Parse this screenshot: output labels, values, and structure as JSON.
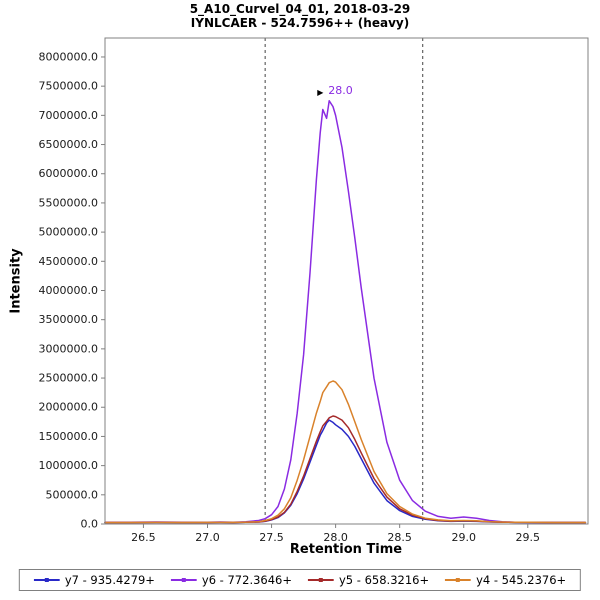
{
  "title": {
    "line1": "5_A10_Curvel_04_01, 2018-03-29",
    "line2": "IYNLCAER - 524.7596++ (heavy)"
  },
  "axes": {
    "x_label": "Retention Time",
    "y_label": "Intensity"
  },
  "chart_data": {
    "type": "line",
    "title": "5_A10_Curvel_04_01, 2018-03-29 / IYNLCAER - 524.7596++ (heavy)",
    "xlabel": "Retention Time",
    "ylabel": "Intensity",
    "xlim": [
      26.2,
      29.97
    ],
    "ylim": [
      0,
      8325000
    ],
    "x_ticks": [
      26.5,
      27.0,
      27.5,
      28.0,
      28.5,
      29.0,
      29.5
    ],
    "y_ticks": [
      0,
      500000,
      1000000,
      1500000,
      2000000,
      2500000,
      3000000,
      3500000,
      4000000,
      4500000,
      5000000,
      5500000,
      6000000,
      6500000,
      7000000,
      7500000,
      8000000
    ],
    "grid": false,
    "legend_position": "bottom",
    "boundaries": [
      27.45,
      28.68
    ],
    "annotation": {
      "text": "28.0",
      "x": 27.95,
      "y": 7250000,
      "color": "#8a2be2"
    },
    "frame_color": "#808080",
    "x": [
      26.2,
      26.4,
      26.6,
      26.8,
      27.0,
      27.1,
      27.2,
      27.3,
      27.4,
      27.45,
      27.5,
      27.55,
      27.6,
      27.65,
      27.7,
      27.75,
      27.8,
      27.85,
      27.88,
      27.9,
      27.93,
      27.95,
      27.98,
      28.0,
      28.05,
      28.1,
      28.15,
      28.2,
      28.3,
      28.4,
      28.5,
      28.6,
      28.7,
      28.8,
      28.9,
      29.0,
      29.1,
      29.2,
      29.3,
      29.4,
      29.5,
      29.7,
      29.95
    ],
    "series": [
      {
        "name": "y7 - 935.4279+",
        "color": "#2929c8",
        "values": [
          25000,
          25000,
          28000,
          25000,
          26000,
          28000,
          26000,
          30000,
          35000,
          45000,
          70000,
          110000,
          190000,
          320000,
          520000,
          770000,
          1060000,
          1350000,
          1520000,
          1600000,
          1730000,
          1780000,
          1740000,
          1700000,
          1620000,
          1500000,
          1330000,
          1120000,
          700000,
          400000,
          230000,
          130000,
          80000,
          55000,
          45000,
          50000,
          45000,
          35000,
          30000,
          28000,
          25000,
          25000,
          25000
        ]
      },
      {
        "name": "y6 - 772.3646+",
        "color": "#8a2be2",
        "values": [
          30000,
          30000,
          35000,
          30000,
          30000,
          35000,
          30000,
          40000,
          60000,
          90000,
          160000,
          300000,
          600000,
          1100000,
          1900000,
          2900000,
          4300000,
          5900000,
          6700000,
          7100000,
          6950000,
          7250000,
          7150000,
          7000000,
          6450000,
          5700000,
          4900000,
          4050000,
          2500000,
          1400000,
          750000,
          400000,
          220000,
          130000,
          100000,
          120000,
          100000,
          60000,
          40000,
          30000,
          30000,
          25000,
          25000
        ]
      },
      {
        "name": "y5 - 658.3216+",
        "color": "#a52a2a",
        "values": [
          25000,
          25000,
          27000,
          25000,
          26000,
          27000,
          26000,
          30000,
          35000,
          50000,
          75000,
          120000,
          200000,
          340000,
          560000,
          820000,
          1120000,
          1420000,
          1580000,
          1680000,
          1760000,
          1820000,
          1850000,
          1840000,
          1780000,
          1650000,
          1450000,
          1220000,
          780000,
          460000,
          260000,
          150000,
          90000,
          60000,
          50000,
          55000,
          50000,
          40000,
          30000,
          28000,
          28000,
          25000,
          25000
        ]
      },
      {
        "name": "y4 - 545.2376+",
        "color": "#d9822b",
        "values": [
          25000,
          26000,
          28000,
          26000,
          27000,
          28000,
          27000,
          32000,
          40000,
          60000,
          90000,
          150000,
          260000,
          450000,
          750000,
          1100000,
          1500000,
          1900000,
          2100000,
          2250000,
          2350000,
          2420000,
          2450000,
          2430000,
          2300000,
          2050000,
          1750000,
          1450000,
          900000,
          520000,
          300000,
          170000,
          100000,
          70000,
          55000,
          60000,
          55000,
          40000,
          35000,
          30000,
          30000,
          25000,
          25000
        ]
      }
    ]
  }
}
